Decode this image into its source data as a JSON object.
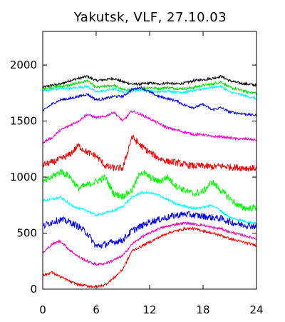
{
  "chart_data": {
    "type": "line",
    "title": "Yakutsk, VLF, 27.10.03",
    "xlabel": "",
    "ylabel": "",
    "xlim": [
      0,
      24
    ],
    "ylim": [
      0,
      2300
    ],
    "x_ticks": [
      0,
      6,
      12,
      18,
      24
    ],
    "x_tick_labels": [
      "0",
      "6",
      "12",
      "18",
      "24"
    ],
    "y_ticks": [
      0,
      500,
      1000,
      1500,
      2000
    ],
    "y_tick_labels": [
      "0",
      "500",
      "1000",
      "1500",
      "2000"
    ],
    "grid": false,
    "legend": "none",
    "x": [
      0,
      1,
      2,
      3,
      4,
      5,
      6,
      7,
      8,
      9,
      10,
      11,
      12,
      13,
      14,
      15,
      16,
      17,
      18,
      19,
      20,
      21,
      22,
      23,
      24
    ],
    "series": [
      {
        "color": "#000000",
        "values": [
          1800,
          1820,
          1830,
          1860,
          1880,
          1900,
          1860,
          1870,
          1880,
          1850,
          1830,
          1830,
          1840,
          1830,
          1840,
          1830,
          1840,
          1860,
          1870,
          1880,
          1900,
          1860,
          1840,
          1830,
          1820
        ]
      },
      {
        "color": "#00e000",
        "values": [
          1790,
          1800,
          1810,
          1820,
          1840,
          1860,
          1800,
          1810,
          1820,
          1780,
          1780,
          1790,
          1800,
          1790,
          1800,
          1790,
          1790,
          1800,
          1820,
          1830,
          1850,
          1800,
          1780,
          1760,
          1750
        ]
      },
      {
        "color": "#00ffff",
        "values": [
          1770,
          1780,
          1790,
          1790,
          1800,
          1810,
          1760,
          1770,
          1790,
          1760,
          1770,
          1780,
          1770,
          1760,
          1770,
          1760,
          1760,
          1770,
          1790,
          1800,
          1810,
          1760,
          1740,
          1720,
          1700
        ]
      },
      {
        "color": "#0000ff",
        "values": [
          1590,
          1650,
          1690,
          1700,
          1720,
          1740,
          1690,
          1700,
          1720,
          1720,
          1780,
          1800,
          1760,
          1720,
          1700,
          1680,
          1640,
          1620,
          1650,
          1600,
          1620,
          1580,
          1570,
          1560,
          1550
        ]
      },
      {
        "color": "#ff00cc",
        "values": [
          1310,
          1350,
          1420,
          1460,
          1500,
          1560,
          1530,
          1540,
          1580,
          1500,
          1590,
          1560,
          1520,
          1480,
          1440,
          1420,
          1400,
          1380,
          1380,
          1360,
          1360,
          1350,
          1340,
          1340,
          1330
        ]
      },
      {
        "color": "#ff0000",
        "values": [
          1110,
          1130,
          1160,
          1200,
          1280,
          1220,
          1190,
          1100,
          1080,
          1080,
          1360,
          1280,
          1220,
          1170,
          1140,
          1130,
          1110,
          1100,
          1100,
          1090,
          1100,
          1090,
          1085,
          1080,
          1080
        ]
      },
      {
        "color": "#00ff00",
        "values": [
          950,
          1000,
          1050,
          1010,
          900,
          930,
          960,
          1000,
          850,
          830,
          880,
          1050,
          1000,
          960,
          1000,
          920,
          880,
          850,
          870,
          960,
          880,
          810,
          740,
          720,
          730
        ]
      },
      {
        "color": "#00ffff",
        "values": [
          790,
          800,
          820,
          760,
          720,
          700,
          660,
          680,
          700,
          740,
          820,
          860,
          860,
          840,
          800,
          760,
          740,
          720,
          730,
          750,
          700,
          640,
          620,
          600,
          590
        ]
      },
      {
        "color": "#0000ff",
        "values": [
          560,
          600,
          620,
          600,
          560,
          500,
          380,
          400,
          420,
          440,
          520,
          560,
          600,
          620,
          640,
          660,
          670,
          660,
          650,
          640,
          630,
          600,
          580,
          570,
          560
        ]
      },
      {
        "color": "#ff00aa",
        "values": [
          320,
          400,
          430,
          350,
          290,
          250,
          220,
          230,
          260,
          300,
          400,
          460,
          500,
          540,
          560,
          580,
          590,
          580,
          570,
          550,
          540,
          510,
          490,
          470,
          450
        ]
      },
      {
        "color": "#ff0000",
        "values": [
          120,
          150,
          110,
          70,
          40,
          30,
          20,
          40,
          100,
          180,
          340,
          380,
          420,
          460,
          500,
          520,
          540,
          540,
          520,
          500,
          480,
          450,
          430,
          410,
          390
        ]
      }
    ]
  }
}
